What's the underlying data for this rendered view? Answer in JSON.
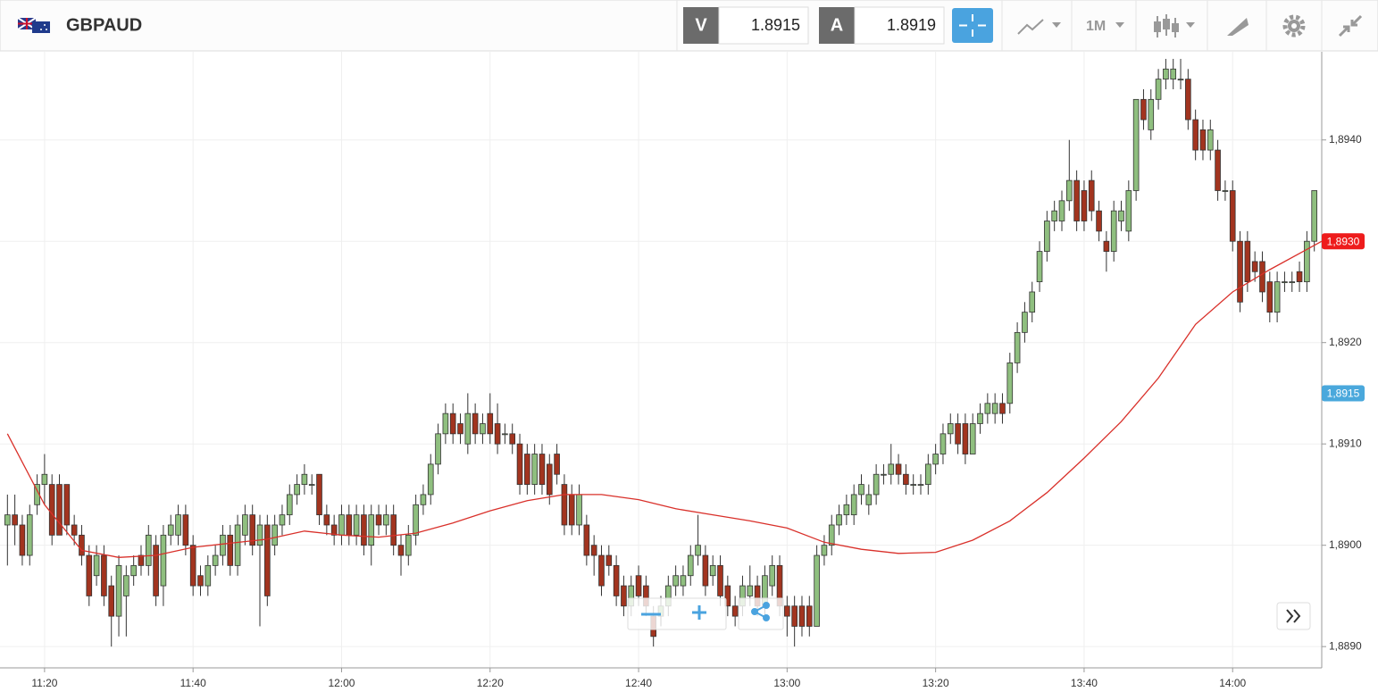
{
  "header": {
    "symbol": "GBPAUD",
    "bid": {
      "label": "V",
      "value": "1.8915"
    },
    "ask": {
      "label": "A",
      "value": "1.8919"
    },
    "timeframe": "1M"
  },
  "chart_data": {
    "type": "candlestick",
    "x": [
      "11:15",
      "11:16",
      "11:17",
      "11:18",
      "11:19",
      "11:20",
      "11:21",
      "11:22",
      "11:23",
      "11:24",
      "11:25",
      "11:26",
      "11:27",
      "11:28",
      "11:29",
      "11:30",
      "11:31",
      "11:32",
      "11:33",
      "11:34",
      "11:35",
      "11:36",
      "11:37",
      "11:38",
      "11:39",
      "11:40",
      "11:41",
      "11:42",
      "11:43",
      "11:44",
      "11:45",
      "11:46",
      "11:47",
      "11:48",
      "11:49",
      "11:50",
      "11:51",
      "11:52",
      "11:53",
      "11:54",
      "11:55",
      "11:56",
      "11:57",
      "11:58",
      "11:59",
      "12:00",
      "12:01",
      "12:02",
      "12:03",
      "12:04",
      "12:05",
      "12:06",
      "12:07",
      "12:08",
      "12:09",
      "12:10",
      "12:11",
      "12:12",
      "12:13",
      "12:14",
      "12:15",
      "12:16",
      "12:17",
      "12:18",
      "12:19",
      "12:20",
      "12:21",
      "12:22",
      "12:23",
      "12:24",
      "12:25",
      "12:26",
      "12:27",
      "12:28",
      "12:29",
      "12:30",
      "12:31",
      "12:32",
      "12:33",
      "12:34",
      "12:35",
      "12:36",
      "12:37",
      "12:38",
      "12:39",
      "12:40",
      "12:41",
      "12:42",
      "12:43",
      "12:44",
      "12:45",
      "12:46",
      "12:47",
      "12:48",
      "12:49",
      "12:50",
      "12:51",
      "12:52",
      "12:53",
      "12:54",
      "12:55",
      "12:56",
      "12:57",
      "12:58",
      "12:59",
      "13:00",
      "13:01",
      "13:02",
      "13:03",
      "13:04",
      "13:05",
      "13:06",
      "13:07",
      "13:08",
      "13:09",
      "13:10",
      "13:11",
      "13:12",
      "13:13",
      "13:14",
      "13:15",
      "13:16",
      "13:17",
      "13:18",
      "13:19",
      "13:20",
      "13:21",
      "13:22",
      "13:23",
      "13:24",
      "13:25",
      "13:26",
      "13:27",
      "13:28",
      "13:29",
      "13:30",
      "13:31",
      "13:32",
      "13:33",
      "13:34",
      "13:35",
      "13:36",
      "13:37",
      "13:38",
      "13:39",
      "13:40",
      "13:41",
      "13:42",
      "13:43",
      "13:44",
      "13:45",
      "13:46",
      "13:47",
      "13:48",
      "13:49",
      "13:50",
      "13:51",
      "13:52",
      "13:53",
      "13:54",
      "13:55",
      "13:56",
      "13:57",
      "13:58",
      "13:59",
      "14:00",
      "14:01",
      "14:02",
      "14:03",
      "14:04",
      "14:05",
      "14:06",
      "14:07",
      "14:08",
      "14:09",
      "14:10",
      "14:11"
    ],
    "ohlc": [
      [
        1.8902,
        1.8905,
        1.8898,
        1.8903
      ],
      [
        1.8903,
        1.8905,
        1.89,
        1.8902
      ],
      [
        1.8902,
        1.8903,
        1.8898,
        1.8899
      ],
      [
        1.8899,
        1.8904,
        1.8898,
        1.8903
      ],
      [
        1.8904,
        1.8907,
        1.8903,
        1.8906
      ],
      [
        1.8906,
        1.8909,
        1.8904,
        1.8907
      ],
      [
        1.8906,
        1.8907,
        1.89,
        1.8901
      ],
      [
        1.8906,
        1.8907,
        1.8901,
        1.8901
      ],
      [
        1.8906,
        1.8906,
        1.8901,
        1.8902
      ],
      [
        1.8902,
        1.8903,
        1.89,
        1.8901
      ],
      [
        1.8901,
        1.8902,
        1.8898,
        1.8899
      ],
      [
        1.8899,
        1.89,
        1.8894,
        1.8895
      ],
      [
        1.8897,
        1.89,
        1.8896,
        1.8899
      ],
      [
        1.8899,
        1.89,
        1.8894,
        1.8895
      ],
      [
        1.8896,
        1.8897,
        1.889,
        1.8893
      ],
      [
        1.8893,
        1.8899,
        1.8891,
        1.8898
      ],
      [
        1.8895,
        1.8898,
        1.8891,
        1.8897
      ],
      [
        1.8897,
        1.8899,
        1.8896,
        1.8898
      ],
      [
        1.8899,
        1.89,
        1.8897,
        1.8898
      ],
      [
        1.8898,
        1.8902,
        1.8897,
        1.8901
      ],
      [
        1.89,
        1.8901,
        1.8894,
        1.8895
      ],
      [
        1.8896,
        1.8902,
        1.8894,
        1.8901
      ],
      [
        1.8901,
        1.8903,
        1.89,
        1.8902
      ],
      [
        1.8901,
        1.8904,
        1.89,
        1.8903
      ],
      [
        1.8903,
        1.8904,
        1.8899,
        1.89
      ],
      [
        1.89,
        1.8901,
        1.8895,
        1.8896
      ],
      [
        1.8897,
        1.8898,
        1.8895,
        1.8896
      ],
      [
        1.8896,
        1.8899,
        1.8895,
        1.8898
      ],
      [
        1.8898,
        1.89,
        1.8897,
        1.8899
      ],
      [
        1.8899,
        1.8902,
        1.8898,
        1.8901
      ],
      [
        1.8901,
        1.8902,
        1.8897,
        1.8898
      ],
      [
        1.8898,
        1.8903,
        1.8897,
        1.8902
      ],
      [
        1.8901,
        1.8904,
        1.89,
        1.8903
      ],
      [
        1.8903,
        1.8904,
        1.8899,
        1.89
      ],
      [
        1.89,
        1.8903,
        1.8892,
        1.8902
      ],
      [
        1.8902,
        1.8903,
        1.8894,
        1.8895
      ],
      [
        1.89,
        1.8903,
        1.8899,
        1.8902
      ],
      [
        1.8902,
        1.8904,
        1.8901,
        1.8903
      ],
      [
        1.8903,
        1.8906,
        1.8902,
        1.8905
      ],
      [
        1.8905,
        1.8907,
        1.8904,
        1.8906
      ],
      [
        1.8906,
        1.8908,
        1.8905,
        1.8907
      ],
      [
        1.8906,
        1.8907,
        1.8905,
        1.8906
      ],
      [
        1.8907,
        1.8907,
        1.8902,
        1.8903
      ],
      [
        1.8903,
        1.8904,
        1.8901,
        1.8902
      ],
      [
        1.8902,
        1.8903,
        1.89,
        1.8901
      ],
      [
        1.8901,
        1.8904,
        1.89,
        1.8903
      ],
      [
        1.8903,
        1.8904,
        1.89,
        1.8901
      ],
      [
        1.8901,
        1.8904,
        1.89,
        1.8903
      ],
      [
        1.8903,
        1.8904,
        1.8899,
        1.89
      ],
      [
        1.89,
        1.8904,
        1.8898,
        1.8903
      ],
      [
        1.8903,
        1.8904,
        1.8901,
        1.8902
      ],
      [
        1.8902,
        1.8904,
        1.8901,
        1.8903
      ],
      [
        1.8903,
        1.8904,
        1.8899,
        1.89
      ],
      [
        1.89,
        1.8901,
        1.8897,
        1.8899
      ],
      [
        1.8899,
        1.8902,
        1.8898,
        1.8901
      ],
      [
        1.8901,
        1.8905,
        1.89,
        1.8904
      ],
      [
        1.8904,
        1.8906,
        1.8903,
        1.8905
      ],
      [
        1.8905,
        1.8909,
        1.8904,
        1.8908
      ],
      [
        1.8908,
        1.8912,
        1.8907,
        1.8911
      ],
      [
        1.8911,
        1.8914,
        1.891,
        1.8913
      ],
      [
        1.8913,
        1.8914,
        1.891,
        1.8911
      ],
      [
        1.8912,
        1.8913,
        1.891,
        1.8911
      ],
      [
        1.891,
        1.8915,
        1.8909,
        1.8913
      ],
      [
        1.8913,
        1.8914,
        1.891,
        1.8911
      ],
      [
        1.8911,
        1.8913,
        1.891,
        1.8912
      ],
      [
        1.8913,
        1.8915,
        1.891,
        1.8911
      ],
      [
        1.8912,
        1.8914,
        1.8909,
        1.891
      ],
      [
        1.8911,
        1.8912,
        1.891,
        1.8911
      ],
      [
        1.8911,
        1.8912,
        1.8909,
        1.891
      ],
      [
        1.891,
        1.8911,
        1.8905,
        1.8906
      ],
      [
        1.8909,
        1.891,
        1.8905,
        1.8906
      ],
      [
        1.8906,
        1.891,
        1.8905,
        1.8909
      ],
      [
        1.8909,
        1.891,
        1.8905,
        1.8906
      ],
      [
        1.8908,
        1.8909,
        1.8904,
        1.8905
      ],
      [
        1.8909,
        1.891,
        1.8906,
        1.8907
      ],
      [
        1.8906,
        1.8907,
        1.8901,
        1.8902
      ],
      [
        1.8905,
        1.8906,
        1.8901,
        1.8902
      ],
      [
        1.8902,
        1.8906,
        1.8901,
        1.8905
      ],
      [
        1.8902,
        1.8903,
        1.8898,
        1.8899
      ],
      [
        1.89,
        1.8901,
        1.8897,
        1.8899
      ],
      [
        1.8899,
        1.89,
        1.8895,
        1.8896
      ],
      [
        1.8899,
        1.89,
        1.8897,
        1.8898
      ],
      [
        1.8898,
        1.8899,
        1.8894,
        1.8895
      ],
      [
        1.8896,
        1.8897,
        1.8893,
        1.8894
      ],
      [
        1.8894,
        1.8897,
        1.8893,
        1.8896
      ],
      [
        1.8897,
        1.8898,
        1.8894,
        1.8895
      ],
      [
        1.8896,
        1.8897,
        1.8893,
        1.8894
      ],
      [
        1.8893,
        1.8894,
        1.889,
        1.8891
      ],
      [
        1.8893,
        1.8895,
        1.8892,
        1.8894
      ],
      [
        1.8894,
        1.8897,
        1.8893,
        1.8896
      ],
      [
        1.8896,
        1.8898,
        1.8895,
        1.8897
      ],
      [
        1.8896,
        1.8898,
        1.8895,
        1.8897
      ],
      [
        1.8897,
        1.89,
        1.8896,
        1.8899
      ],
      [
        1.8899,
        1.8903,
        1.8898,
        1.89
      ],
      [
        1.8899,
        1.89,
        1.8895,
        1.8896
      ],
      [
        1.8897,
        1.8899,
        1.8896,
        1.8898
      ],
      [
        1.8898,
        1.8899,
        1.8894,
        1.8895
      ],
      [
        1.8896,
        1.8897,
        1.8893,
        1.8894
      ],
      [
        1.8894,
        1.8895,
        1.8892,
        1.8893
      ],
      [
        1.8894,
        1.8897,
        1.8893,
        1.8896
      ],
      [
        1.8895,
        1.8898,
        1.8894,
        1.8896
      ],
      [
        1.8896,
        1.8897,
        1.8893,
        1.8894
      ],
      [
        1.8894,
        1.8898,
        1.8893,
        1.8897
      ],
      [
        1.8896,
        1.8899,
        1.8895,
        1.8898
      ],
      [
        1.8898,
        1.8899,
        1.8893,
        1.8894
      ],
      [
        1.8894,
        1.8895,
        1.8891,
        1.8893
      ],
      [
        1.8894,
        1.8895,
        1.889,
        1.8892
      ],
      [
        1.8894,
        1.8895,
        1.8891,
        1.8892
      ],
      [
        1.8894,
        1.8895,
        1.8891,
        1.8892
      ],
      [
        1.8892,
        1.89,
        1.8892,
        1.8899
      ],
      [
        1.8899,
        1.8901,
        1.8898,
        1.89
      ],
      [
        1.89,
        1.8903,
        1.8899,
        1.8902
      ],
      [
        1.8902,
        1.8904,
        1.8901,
        1.8903
      ],
      [
        1.8903,
        1.8905,
        1.8902,
        1.8904
      ],
      [
        1.8903,
        1.8906,
        1.8902,
        1.8905
      ],
      [
        1.8905,
        1.8907,
        1.8904,
        1.8906
      ],
      [
        1.8904,
        1.8906,
        1.8903,
        1.8905
      ],
      [
        1.8905,
        1.8908,
        1.8904,
        1.8907
      ],
      [
        1.8907,
        1.8908,
        1.8906,
        1.8907
      ],
      [
        1.8907,
        1.891,
        1.8906,
        1.8908
      ],
      [
        1.8908,
        1.8909,
        1.8906,
        1.8907
      ],
      [
        1.8907,
        1.8908,
        1.8905,
        1.8906
      ],
      [
        1.8906,
        1.8907,
        1.8905,
        1.8906
      ],
      [
        1.8906,
        1.8907,
        1.8905,
        1.8906
      ],
      [
        1.8906,
        1.8909,
        1.8905,
        1.8908
      ],
      [
        1.8908,
        1.891,
        1.8907,
        1.8909
      ],
      [
        1.8909,
        1.8912,
        1.8908,
        1.8911
      ],
      [
        1.8911,
        1.8913,
        1.891,
        1.8912
      ],
      [
        1.8912,
        1.8913,
        1.8909,
        1.891
      ],
      [
        1.8912,
        1.8913,
        1.8908,
        1.8909
      ],
      [
        1.8909,
        1.8913,
        1.8909,
        1.8912
      ],
      [
        1.8912,
        1.8914,
        1.8911,
        1.8913
      ],
      [
        1.8913,
        1.8915,
        1.8912,
        1.8914
      ],
      [
        1.8913,
        1.8915,
        1.8912,
        1.8914
      ],
      [
        1.8914,
        1.8915,
        1.8912,
        1.8913
      ],
      [
        1.8914,
        1.8919,
        1.8913,
        1.8918
      ],
      [
        1.8918,
        1.8922,
        1.8917,
        1.8921
      ],
      [
        1.8921,
        1.8924,
        1.892,
        1.8923
      ],
      [
        1.8923,
        1.8926,
        1.8922,
        1.8925
      ],
      [
        1.8926,
        1.893,
        1.8925,
        1.8929
      ],
      [
        1.8929,
        1.8933,
        1.8928,
        1.8932
      ],
      [
        1.8932,
        1.8934,
        1.8931,
        1.8933
      ],
      [
        1.8932,
        1.8935,
        1.8931,
        1.8934
      ],
      [
        1.8934,
        1.894,
        1.8933,
        1.8936
      ],
      [
        1.8936,
        1.8937,
        1.8931,
        1.8932
      ],
      [
        1.8935,
        1.8936,
        1.8931,
        1.8932
      ],
      [
        1.8936,
        1.8937,
        1.8932,
        1.8933
      ],
      [
        1.8933,
        1.8934,
        1.893,
        1.8931
      ],
      [
        1.893,
        1.8931,
        1.8927,
        1.8929
      ],
      [
        1.8929,
        1.8934,
        1.8928,
        1.8933
      ],
      [
        1.8932,
        1.8934,
        1.8931,
        1.8933
      ],
      [
        1.8931,
        1.8936,
        1.893,
        1.8935
      ],
      [
        1.8935,
        1.8944,
        1.8934,
        1.8944
      ],
      [
        1.8944,
        1.8945,
        1.8941,
        1.8942
      ],
      [
        1.8941,
        1.8945,
        1.894,
        1.8944
      ],
      [
        1.8944,
        1.8947,
        1.8943,
        1.8946
      ],
      [
        1.8946,
        1.8948,
        1.8945,
        1.8947
      ],
      [
        1.8946,
        1.8948,
        1.8945,
        1.8947
      ],
      [
        1.8946,
        1.8948,
        1.8945,
        1.8946
      ],
      [
        1.8946,
        1.8947,
        1.8941,
        1.8942
      ],
      [
        1.8942,
        1.8943,
        1.8938,
        1.8939
      ],
      [
        1.8941,
        1.8942,
        1.8938,
        1.8939
      ],
      [
        1.8939,
        1.8942,
        1.8938,
        1.8941
      ],
      [
        1.8939,
        1.894,
        1.8934,
        1.8935
      ],
      [
        1.8935,
        1.8936,
        1.8934,
        1.8935
      ],
      [
        1.8935,
        1.8936,
        1.8929,
        1.893
      ],
      [
        1.893,
        1.8931,
        1.8923,
        1.8924
      ],
      [
        1.893,
        1.8931,
        1.8925,
        1.8926
      ],
      [
        1.8928,
        1.8929,
        1.8926,
        1.8927
      ],
      [
        1.8928,
        1.8929,
        1.8924,
        1.8925
      ],
      [
        1.8926,
        1.8927,
        1.8922,
        1.8923
      ],
      [
        1.8923,
        1.8927,
        1.8922,
        1.8926
      ],
      [
        1.8926,
        1.8927,
        1.8925,
        1.8926
      ],
      [
        1.8926,
        1.8927,
        1.8925,
        1.8926
      ],
      [
        1.8927,
        1.8928,
        1.8925,
        1.8926
      ],
      [
        1.8926,
        1.8931,
        1.8925,
        1.893
      ],
      [
        1.893,
        1.8935,
        1.8929,
        1.8935
      ]
    ],
    "up_color": "#8fbf7f",
    "down_color": "#a2341f",
    "moving_average": {
      "color": "#d9302a",
      "x": [
        "11:15",
        "11:20",
        "11:25",
        "11:30",
        "11:35",
        "11:40",
        "11:45",
        "11:50",
        "11:55",
        "12:00",
        "12:05",
        "12:10",
        "12:15",
        "12:20",
        "12:25",
        "12:30",
        "12:35",
        "12:40",
        "12:45",
        "12:50",
        "12:55",
        "13:00",
        "13:05",
        "13:10",
        "13:15",
        "13:20",
        "13:25",
        "13:30",
        "13:35",
        "13:40",
        "13:45",
        "13:50",
        "13:55",
        "14:00",
        "14:05",
        "14:10",
        "14:12"
      ],
      "values": [
        1.8911,
        1.8904,
        1.88995,
        1.88988,
        1.8899,
        1.88998,
        1.89002,
        1.89006,
        1.89014,
        1.8901,
        1.89008,
        1.89012,
        1.89022,
        1.89034,
        1.89044,
        1.8905,
        1.8905,
        1.89045,
        1.89036,
        1.8903,
        1.89024,
        1.89017,
        1.89003,
        1.88996,
        1.88992,
        1.88993,
        1.89005,
        1.89024,
        1.89052,
        1.89086,
        1.89122,
        1.89165,
        1.89218,
        1.8925,
        1.89272,
        1.89292,
        1.893
      ]
    },
    "price_labels": [
      {
        "value": 1.893,
        "label": "1,8930",
        "color": "#ee1c1c"
      },
      {
        "value": 1.8915,
        "label": "1,8915",
        "color": "#4aa8dc"
      }
    ],
    "xlim": [
      "11:14",
      "14:12"
    ],
    "xticks": [
      "11:20",
      "11:40",
      "12:00",
      "12:20",
      "12:40",
      "13:00",
      "13:20",
      "13:40",
      "14:00"
    ],
    "ylim": [
      1.88879,
      1.89487
    ],
    "yticks": [
      {
        "value": 1.889,
        "label": "1,8890"
      },
      {
        "value": 1.89,
        "label": "1,8900"
      },
      {
        "value": 1.891,
        "label": "1,8910"
      },
      {
        "value": 1.892,
        "label": "1,8920"
      },
      {
        "value": 1.893,
        "label": "1,8930"
      },
      {
        "value": 1.894,
        "label": "1,8940"
      }
    ],
    "grid": true
  }
}
